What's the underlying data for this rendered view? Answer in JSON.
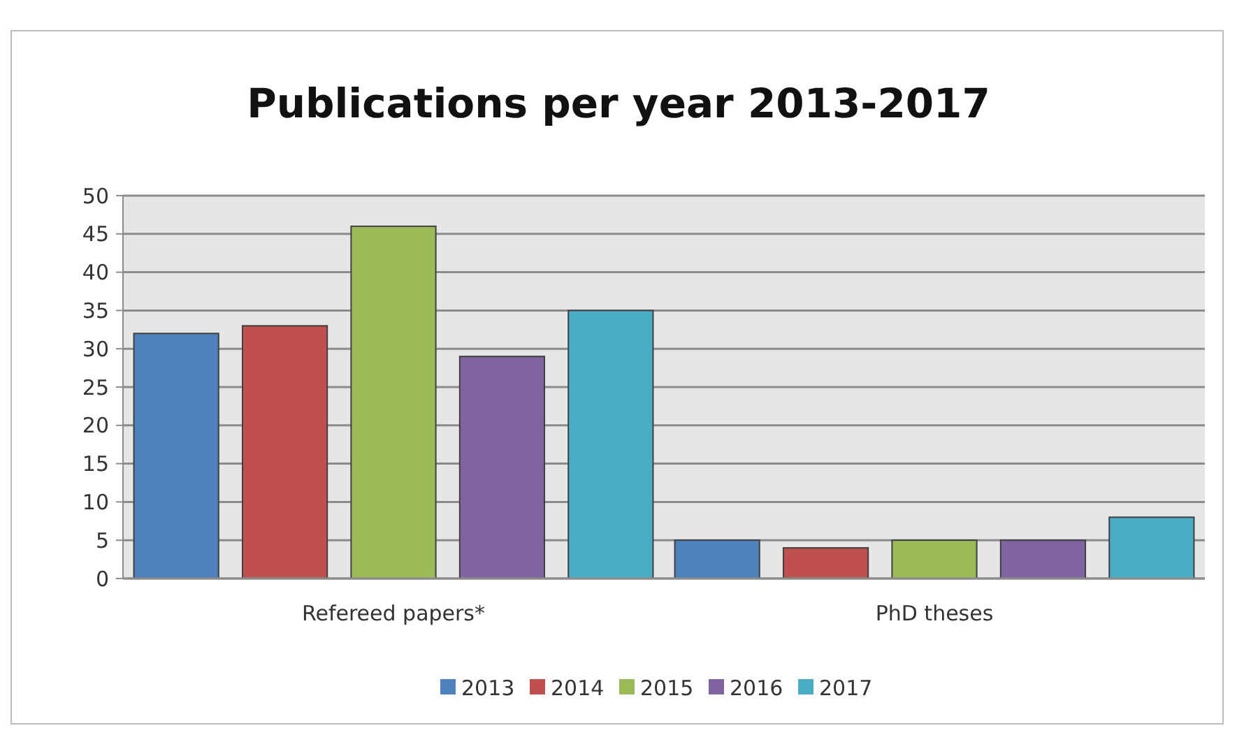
{
  "chart_data": {
    "type": "bar",
    "title": "Publications per year 2013-2017",
    "categories": [
      "Refereed papers*",
      "PhD theses"
    ],
    "series": [
      {
        "name": "2013",
        "color": "#4f81bd",
        "values": [
          32,
          5
        ]
      },
      {
        "name": "2014",
        "color": "#c0504d",
        "values": [
          33,
          4
        ]
      },
      {
        "name": "2015",
        "color": "#9bbb59",
        "values": [
          46,
          5
        ]
      },
      {
        "name": "2016",
        "color": "#8064a2",
        "values": [
          29,
          5
        ]
      },
      {
        "name": "2017",
        "color": "#4bacc6",
        "values": [
          35,
          8
        ]
      }
    ],
    "ylim": [
      0,
      50
    ],
    "yticks": [
      0,
      5,
      10,
      15,
      20,
      25,
      30,
      35,
      40,
      45,
      50
    ],
    "grid": "y",
    "legend": "bottom"
  }
}
